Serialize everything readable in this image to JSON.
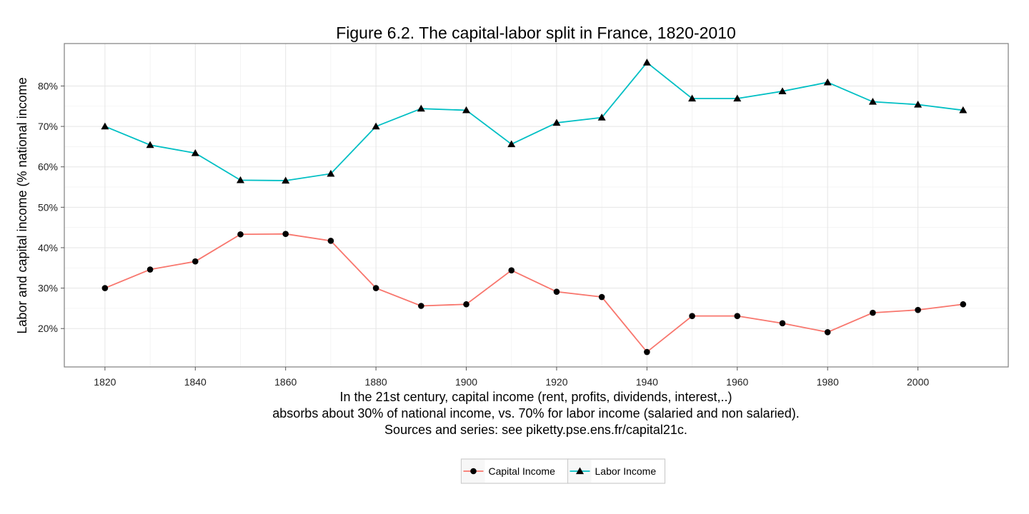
{
  "chart_data": {
    "type": "line",
    "title": "Figure 6.2. The capital-labor split in France, 1820-2010",
    "xlabel_lines": [
      "In the 21st century, capital income (rent, profits, dividends, interest,..)",
      "absorbs about 30% of national income, vs. 70% for labor income (salaried and non salaried).",
      "Sources and series: see piketty.pse.ens.fr/capital21c."
    ],
    "ylabel": "Labor and capital income (% national income",
    "x": [
      1820,
      1830,
      1840,
      1850,
      1860,
      1870,
      1880,
      1890,
      1900,
      1910,
      1920,
      1930,
      1940,
      1950,
      1960,
      1970,
      1980,
      1990,
      2000,
      2010
    ],
    "xlim": [
      1811,
      2020
    ],
    "ylim": [
      10.5,
      90.5
    ],
    "x_ticks": [
      1820,
      1840,
      1860,
      1880,
      1900,
      1920,
      1940,
      1960,
      1980,
      2000
    ],
    "x_tick_labels": [
      "1820",
      "1840",
      "1860",
      "1880",
      "1900",
      "1920",
      "1940",
      "1960",
      "1980",
      "2000"
    ],
    "y_ticks": [
      20,
      30,
      40,
      50,
      60,
      70,
      80
    ],
    "y_tick_labels": [
      "20%",
      "30%",
      "40%",
      "50%",
      "60%",
      "70%",
      "80%"
    ],
    "grid": true,
    "legend_position": "bottom",
    "series": [
      {
        "name": "Capital Income",
        "color": "#f8766d",
        "marker": "circle",
        "values": [
          30.0,
          34.6,
          36.6,
          43.3,
          43.4,
          41.7,
          30.0,
          25.6,
          26.0,
          34.4,
          29.1,
          27.8,
          14.2,
          23.1,
          23.1,
          21.3,
          19.1,
          23.9,
          24.6,
          26.0
        ]
      },
      {
        "name": "Labor Income",
        "color": "#00bfc4",
        "marker": "triangle",
        "values": [
          70.0,
          65.4,
          63.4,
          56.7,
          56.6,
          58.3,
          70.0,
          74.4,
          74.0,
          65.6,
          70.9,
          72.2,
          85.8,
          76.9,
          76.9,
          78.7,
          80.9,
          76.1,
          75.4,
          74.0
        ]
      }
    ]
  }
}
